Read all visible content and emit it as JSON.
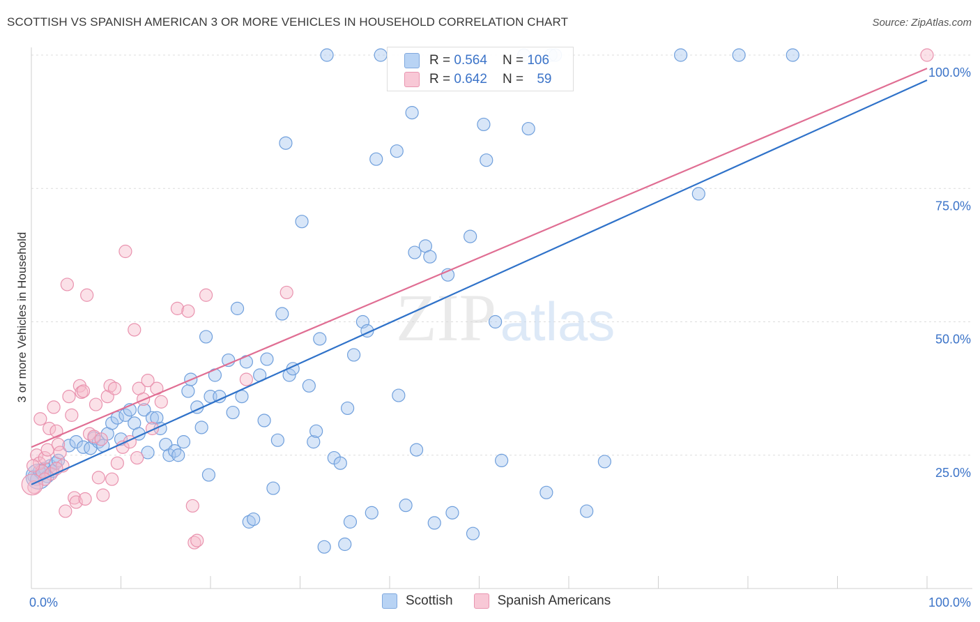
{
  "header": {
    "title": "SCOTTISH VS SPANISH AMERICAN 3 OR MORE VEHICLES IN HOUSEHOLD CORRELATION CHART",
    "source": "Source: ZipAtlas.com"
  },
  "watermark": {
    "zip": "ZIP",
    "atlas": "atlas"
  },
  "legend": {
    "rows": [
      {
        "r_label": "R =",
        "r_value": "0.564",
        "n_label": "N =",
        "n_value": "106"
      },
      {
        "r_label": "R =",
        "r_value": "0.642",
        "n_label": "N =",
        "n_value": "59"
      }
    ],
    "bottom": [
      "Scottish",
      "Spanish Americans"
    ]
  },
  "colors": {
    "blue_fill": "#a9c8f0",
    "blue_stroke": "#6f9fdc",
    "blue_line": "#2f72c9",
    "pink_fill": "#f6bccd",
    "pink_stroke": "#e992ae",
    "pink_line": "#e06e93",
    "axis_label": "#3b73c8"
  },
  "chart_data": {
    "type": "scatter",
    "title": "SCOTTISH VS SPANISH AMERICAN 3 OR MORE VEHICLES IN HOUSEHOLD CORRELATION CHART",
    "xlabel": "",
    "ylabel": "3 or more Vehicles in Household",
    "xlim": [
      0,
      100
    ],
    "ylim": [
      0,
      100
    ],
    "x_tick_labels": [
      "0.0%",
      "100.0%"
    ],
    "y_tick_labels": [
      "25.0%",
      "50.0%",
      "75.0%",
      "100.0%"
    ],
    "y_ticks": [
      25,
      50,
      75,
      100
    ],
    "grid": true,
    "legend_position": "top-center",
    "series": [
      {
        "name": "Scottish",
        "r": 0.564,
        "n": 106,
        "trend": [
          [
            0,
            19.5
          ],
          [
            100,
            95.3
          ]
        ],
        "points": [
          [
            0.3,
            21
          ],
          [
            0.6,
            20.5
          ],
          [
            0.9,
            22
          ],
          [
            1.2,
            21.5
          ],
          [
            1.5,
            22.5
          ],
          [
            1.8,
            21
          ],
          [
            2.1,
            23
          ],
          [
            2.4,
            22
          ],
          [
            2.7,
            23.5
          ],
          [
            3.0,
            24
          ],
          [
            4.2,
            26.8
          ],
          [
            5.0,
            27.5
          ],
          [
            5.8,
            26.5
          ],
          [
            6.6,
            26.3
          ],
          [
            7.0,
            28.2
          ],
          [
            7.5,
            27.5
          ],
          [
            8.0,
            26.8
          ],
          [
            8.5,
            29
          ],
          [
            9.0,
            31
          ],
          [
            9.6,
            32
          ],
          [
            10.0,
            28
          ],
          [
            10.5,
            32.5
          ],
          [
            11.0,
            33.5
          ],
          [
            11.5,
            31
          ],
          [
            12.0,
            29
          ],
          [
            12.6,
            33.5
          ],
          [
            13.0,
            25.5
          ],
          [
            13.5,
            32
          ],
          [
            14.0,
            32
          ],
          [
            14.4,
            30
          ],
          [
            15.0,
            27
          ],
          [
            15.4,
            25
          ],
          [
            16.0,
            25.8
          ],
          [
            16.4,
            25
          ],
          [
            17.0,
            27.5
          ],
          [
            17.5,
            37
          ],
          [
            17.8,
            39.2
          ],
          [
            18.5,
            34
          ],
          [
            19.0,
            30.2
          ],
          [
            19.5,
            47.2
          ],
          [
            19.8,
            21.3
          ],
          [
            20.0,
            36
          ],
          [
            20.5,
            40
          ],
          [
            21.0,
            36
          ],
          [
            22.0,
            42.8
          ],
          [
            22.5,
            33
          ],
          [
            23.0,
            52.5
          ],
          [
            23.5,
            36
          ],
          [
            24.0,
            42.5
          ],
          [
            24.3,
            12.5
          ],
          [
            24.8,
            13
          ],
          [
            25.5,
            40
          ],
          [
            26.0,
            31.5
          ],
          [
            26.3,
            43
          ],
          [
            27.0,
            18.8
          ],
          [
            27.5,
            27.8
          ],
          [
            28.0,
            51.5
          ],
          [
            28.4,
            83.5
          ],
          [
            28.8,
            40
          ],
          [
            29.2,
            41.2
          ],
          [
            30.2,
            68.8
          ],
          [
            31.0,
            38
          ],
          [
            31.5,
            27.5
          ],
          [
            31.8,
            29.5
          ],
          [
            32.2,
            46.8
          ],
          [
            32.7,
            7.8
          ],
          [
            33.0,
            100
          ],
          [
            33.8,
            24.5
          ],
          [
            34.5,
            23.5
          ],
          [
            35.0,
            8.3
          ],
          [
            35.3,
            33.8
          ],
          [
            35.6,
            12.5
          ],
          [
            36.0,
            43.8
          ],
          [
            37.0,
            50
          ],
          [
            37.5,
            48.3
          ],
          [
            38.0,
            14.2
          ],
          [
            38.5,
            80.5
          ],
          [
            39.0,
            100
          ],
          [
            40.8,
            82
          ],
          [
            41.0,
            36.2
          ],
          [
            41.8,
            15.6
          ],
          [
            42.5,
            89.2
          ],
          [
            43.0,
            26
          ],
          [
            42.8,
            63
          ],
          [
            44.0,
            64.2
          ],
          [
            44.5,
            62.2
          ],
          [
            45.0,
            12.3
          ],
          [
            46.5,
            58.8
          ],
          [
            47.0,
            14.2
          ],
          [
            49.0,
            66
          ],
          [
            49.3,
            10.3
          ],
          [
            50.5,
            87
          ],
          [
            50.8,
            80.3
          ],
          [
            51.8,
            50
          ],
          [
            52.5,
            24
          ],
          [
            55.0,
            100
          ],
          [
            55.5,
            86.2
          ],
          [
            57.5,
            18
          ],
          [
            58.0,
            100
          ],
          [
            58.5,
            100
          ],
          [
            62.0,
            14.5
          ],
          [
            64.0,
            23.8
          ],
          [
            72.5,
            100
          ],
          [
            74.5,
            74
          ],
          [
            79.0,
            100
          ],
          [
            85.0,
            100
          ]
        ]
      },
      {
        "name": "Spanish Americans",
        "r": 0.642,
        "n": 59,
        "trend": [
          [
            0,
            26.5
          ],
          [
            100,
            97.5
          ]
        ],
        "points": [
          [
            0.3,
            19
          ],
          [
            0.6,
            25
          ],
          [
            0.9,
            23.5
          ],
          [
            1.0,
            31.8
          ],
          [
            1.2,
            22
          ],
          [
            1.5,
            24.5
          ],
          [
            1.8,
            26
          ],
          [
            2.0,
            30
          ],
          [
            2.2,
            21.5
          ],
          [
            2.5,
            34
          ],
          [
            2.8,
            29.5
          ],
          [
            3.0,
            27
          ],
          [
            3.2,
            25.5
          ],
          [
            3.5,
            23
          ],
          [
            3.8,
            14.5
          ],
          [
            4.0,
            57
          ],
          [
            4.2,
            36
          ],
          [
            4.5,
            32.5
          ],
          [
            4.8,
            17
          ],
          [
            5.0,
            16.2
          ],
          [
            5.4,
            38
          ],
          [
            5.6,
            36.8
          ],
          [
            5.8,
            37
          ],
          [
            6.0,
            16.8
          ],
          [
            6.2,
            55
          ],
          [
            6.5,
            29
          ],
          [
            7.0,
            28.5
          ],
          [
            7.2,
            34.5
          ],
          [
            7.5,
            20.8
          ],
          [
            7.8,
            28
          ],
          [
            8.0,
            17.5
          ],
          [
            8.5,
            36
          ],
          [
            8.8,
            38
          ],
          [
            9.0,
            20.5
          ],
          [
            9.3,
            37.5
          ],
          [
            9.6,
            23.5
          ],
          [
            10.2,
            26.5
          ],
          [
            10.5,
            63.2
          ],
          [
            11.0,
            27.5
          ],
          [
            11.5,
            48.5
          ],
          [
            11.8,
            24.5
          ],
          [
            12.0,
            37.5
          ],
          [
            12.5,
            35.5
          ],
          [
            13.0,
            39
          ],
          [
            13.5,
            30
          ],
          [
            14.0,
            37.5
          ],
          [
            14.5,
            35
          ],
          [
            16.3,
            52.5
          ],
          [
            17.5,
            52
          ],
          [
            18.0,
            15.5
          ],
          [
            18.2,
            8.6
          ],
          [
            18.5,
            9
          ],
          [
            19.5,
            55
          ],
          [
            24.0,
            39.2
          ],
          [
            28.5,
            55.5
          ],
          [
            100,
            100
          ],
          [
            1.5,
            20.5
          ],
          [
            2.8,
            22.5
          ],
          [
            0.2,
            23
          ]
        ]
      }
    ]
  }
}
